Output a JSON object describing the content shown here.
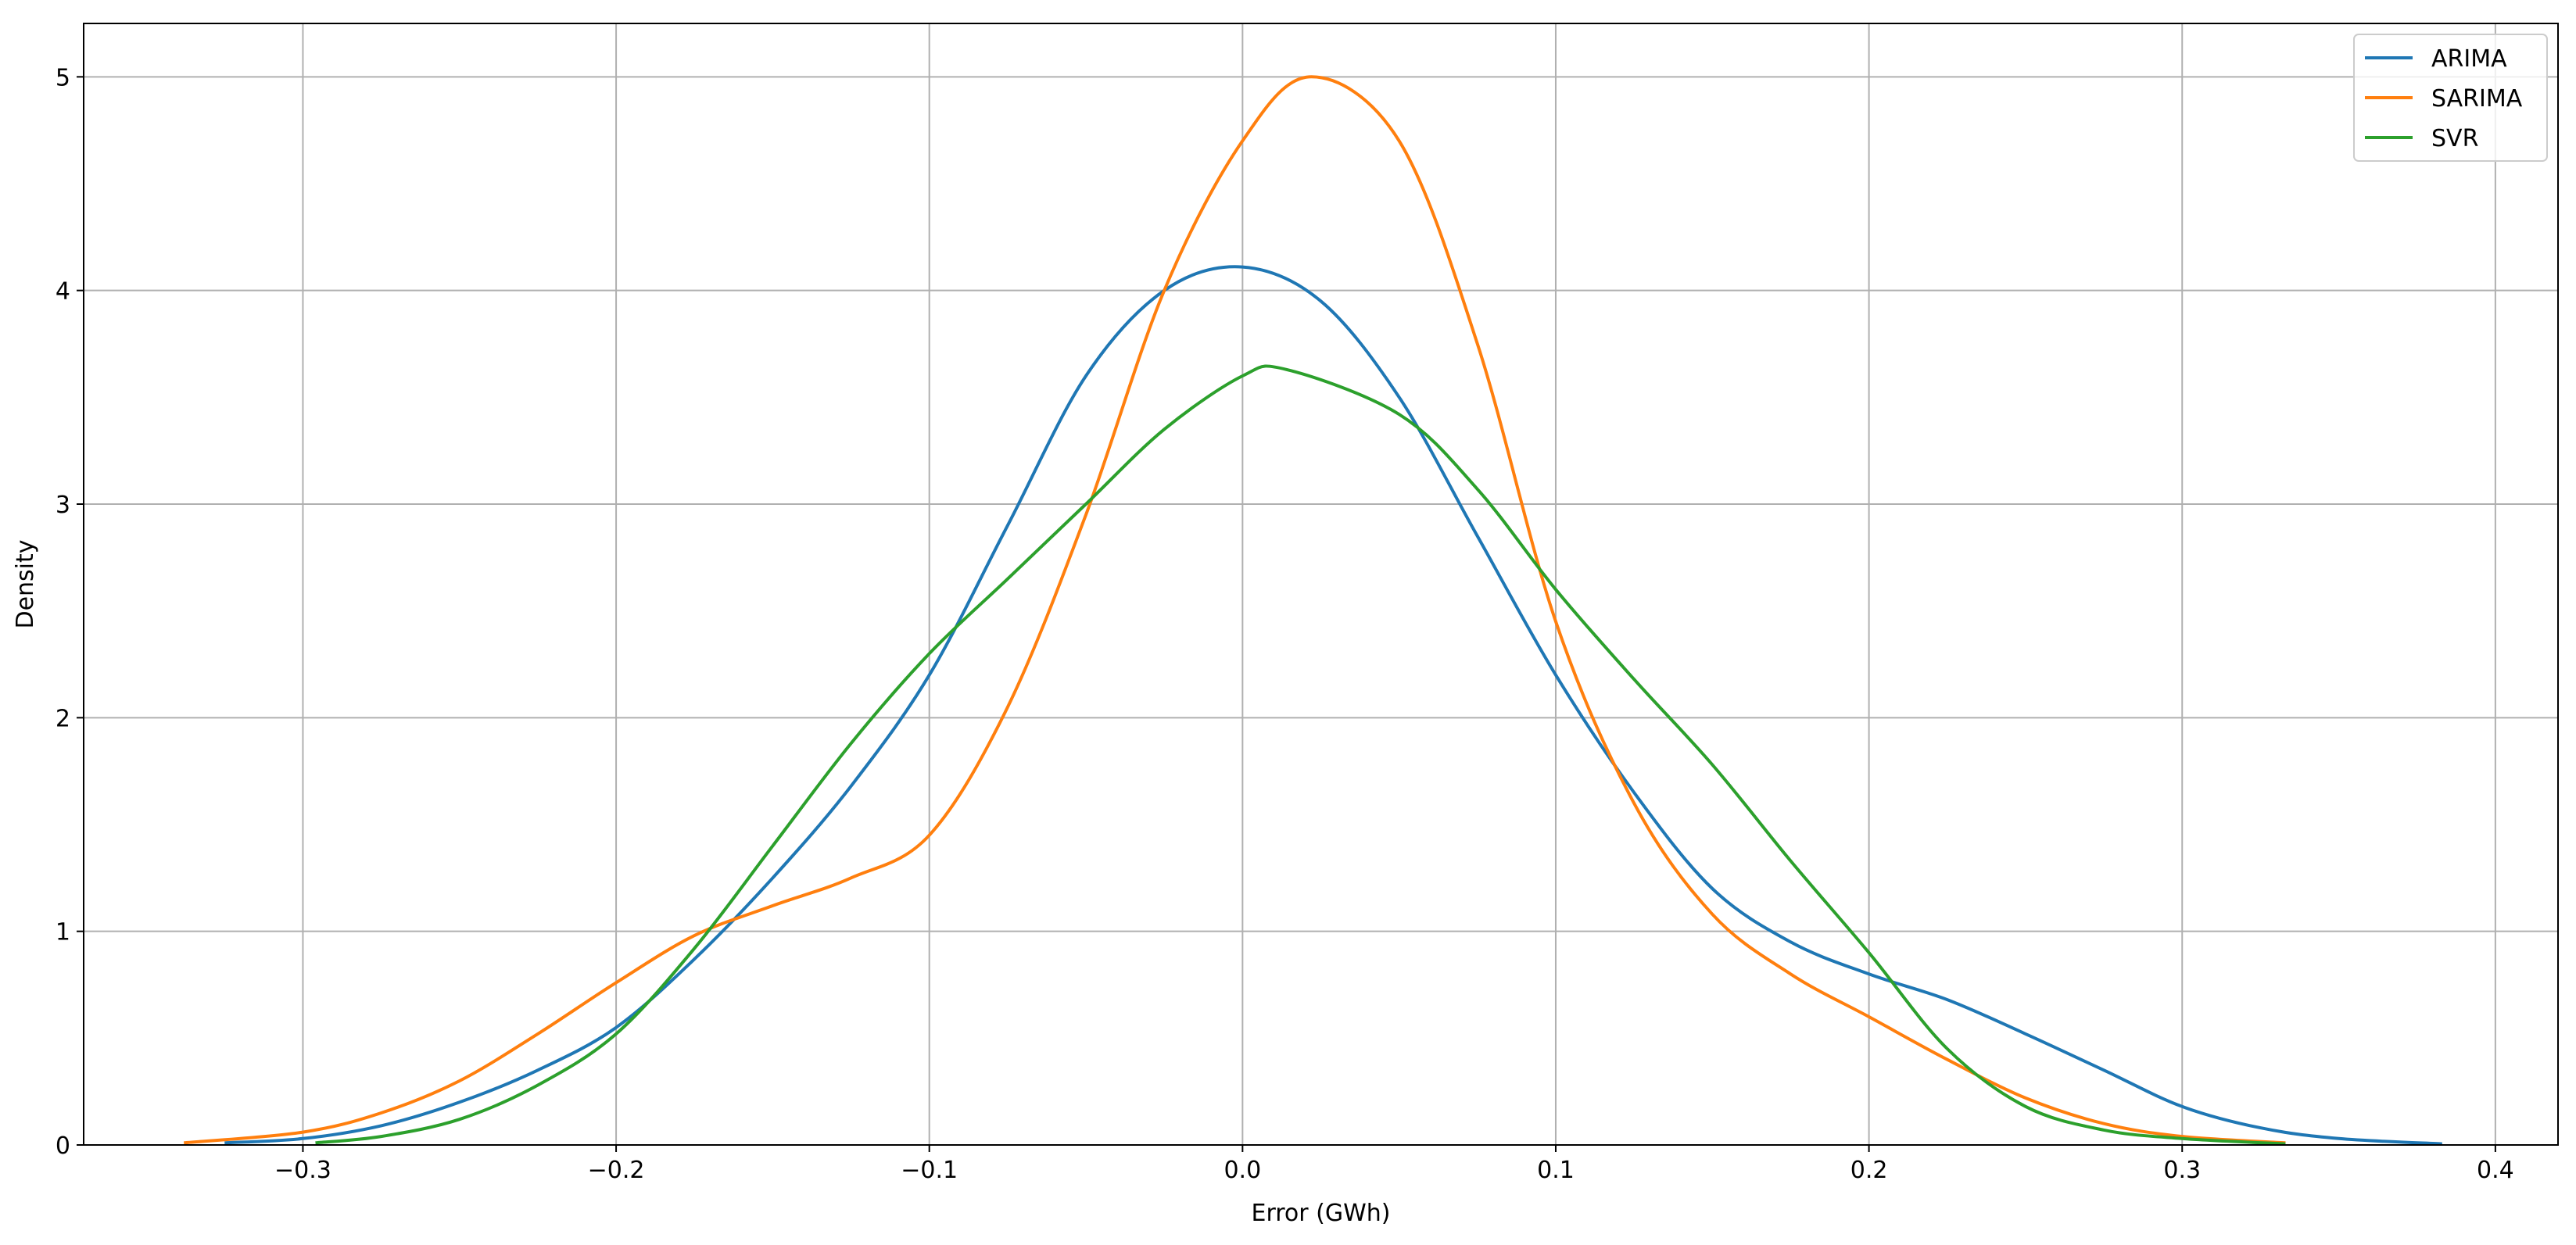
{
  "chart_data": {
    "type": "line",
    "title": "",
    "xlabel": "Error (GWh)",
    "ylabel": "Density",
    "xlim": [
      -0.37,
      0.42
    ],
    "ylim": [
      0,
      5.25
    ],
    "xticks": [
      -0.3,
      -0.2,
      -0.1,
      0.0,
      0.1,
      0.2,
      0.3,
      0.4
    ],
    "xtick_labels": [
      "−0.3",
      "−0.2",
      "−0.1",
      "0.0",
      "0.1",
      "0.2",
      "0.3",
      "0.4"
    ],
    "yticks": [
      0,
      1,
      2,
      3,
      4,
      5
    ],
    "ytick_labels": [
      "0",
      "1",
      "2",
      "3",
      "4",
      "5"
    ],
    "grid": true,
    "legend_position": "top-right",
    "series": [
      {
        "name": "ARIMA",
        "color": "#1f77b4",
        "x": [
          -0.325,
          -0.3,
          -0.275,
          -0.25,
          -0.225,
          -0.2,
          -0.175,
          -0.15,
          -0.125,
          -0.1,
          -0.075,
          -0.05,
          -0.025,
          0.0,
          0.025,
          0.05,
          0.075,
          0.1,
          0.125,
          0.15,
          0.175,
          0.2,
          0.225,
          0.25,
          0.275,
          0.3,
          0.325,
          0.35,
          0.383
        ],
        "y": [
          0.01,
          0.03,
          0.09,
          0.2,
          0.35,
          0.55,
          0.87,
          1.25,
          1.68,
          2.2,
          2.9,
          3.6,
          4.0,
          4.11,
          3.95,
          3.5,
          2.85,
          2.2,
          1.65,
          1.2,
          0.95,
          0.8,
          0.68,
          0.52,
          0.35,
          0.18,
          0.08,
          0.03,
          0.005
        ]
      },
      {
        "name": "SARIMA",
        "color": "#ff7f0e",
        "x": [
          -0.338,
          -0.3,
          -0.275,
          -0.25,
          -0.225,
          -0.2,
          -0.175,
          -0.15,
          -0.125,
          -0.1,
          -0.075,
          -0.05,
          -0.025,
          0.0,
          0.022,
          0.05,
          0.075,
          0.1,
          0.125,
          0.15,
          0.175,
          0.2,
          0.225,
          0.25,
          0.275,
          0.3,
          0.333
        ],
        "y": [
          0.01,
          0.06,
          0.15,
          0.3,
          0.52,
          0.76,
          0.98,
          1.12,
          1.25,
          1.45,
          2.05,
          2.95,
          4.0,
          4.7,
          5.0,
          4.7,
          3.75,
          2.45,
          1.6,
          1.08,
          0.8,
          0.6,
          0.4,
          0.22,
          0.1,
          0.04,
          0.01
        ]
      },
      {
        "name": "SVR",
        "color": "#2ca02c",
        "x": [
          -0.296,
          -0.275,
          -0.25,
          -0.225,
          -0.2,
          -0.175,
          -0.15,
          -0.125,
          -0.1,
          -0.075,
          -0.05,
          -0.025,
          0.0,
          0.014,
          0.05,
          0.075,
          0.1,
          0.125,
          0.15,
          0.175,
          0.2,
          0.225,
          0.25,
          0.275,
          0.3,
          0.333
        ],
        "y": [
          0.01,
          0.04,
          0.12,
          0.28,
          0.52,
          0.92,
          1.4,
          1.88,
          2.3,
          2.65,
          3.0,
          3.35,
          3.6,
          3.63,
          3.42,
          3.07,
          2.6,
          2.18,
          1.78,
          1.33,
          0.9,
          0.45,
          0.18,
          0.07,
          0.03,
          0.005
        ]
      }
    ]
  }
}
